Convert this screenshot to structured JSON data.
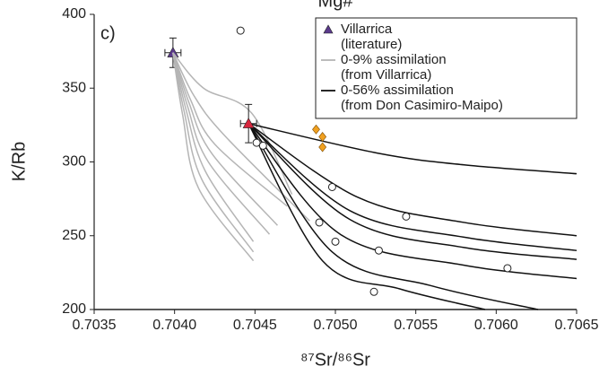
{
  "chart_data": {
    "type": "scatter",
    "title": "Mg#",
    "panel_label": "c)",
    "x_label": "⁸⁷Sr/⁸⁶Sr",
    "y_label": "K/Rb",
    "xlim": [
      0.7035,
      0.7065
    ],
    "ylim": [
      200,
      400
    ],
    "xticks": [
      0.7035,
      {
        "value": 0.704,
        "label": "0.7040"
      },
      0.7045,
      {
        "value": 0.705,
        "label": "0.7050"
      },
      0.7055,
      {
        "value": 0.706,
        "label": "0.7060"
      },
      0.7065
    ],
    "yticks": [
      200,
      250,
      300,
      350,
      400
    ],
    "legend": "upper right",
    "series": [
      {
        "name": "Villarrica (literature)",
        "kind": "triangle",
        "color": "#5b3a8c",
        "x": [
          0.70399
        ],
        "y": [
          374
        ],
        "xerr": [
          5e-05
        ],
        "yerr": [
          10
        ]
      },
      {
        "name": "0-9% assimilation (from Villarrica)",
        "kind": "curves",
        "color": "#b5b5b5",
        "curves": [
          {
            "x": [
              0.70399,
              0.70418,
              0.70448,
              0.70473
            ],
            "y": [
              374,
              350,
              333,
              278
            ]
          },
          {
            "x": [
              0.70399,
              0.70412,
              0.70431,
              0.70484
            ],
            "y": [
              374,
              345,
              318,
              260
            ]
          },
          {
            "x": [
              0.70399,
              0.7041,
              0.70425,
              0.7047
            ],
            "y": [
              374,
              342,
              312,
              270
            ]
          },
          {
            "x": [
              0.70399,
              0.70409,
              0.70423,
              0.70464
            ],
            "y": [
              374,
              340,
              306,
              257
            ]
          },
          {
            "x": [
              0.70399,
              0.70408,
              0.70421,
              0.70459
            ],
            "y": [
              374,
              338,
              300,
              251
            ]
          },
          {
            "x": [
              0.70399,
              0.70407,
              0.70419,
              0.70449
            ],
            "y": [
              374,
              336,
              294,
              246
            ]
          },
          {
            "x": [
              0.70399,
              0.70406,
              0.70417,
              0.70449
            ],
            "y": [
              374,
              334,
              288,
              239
            ]
          },
          {
            "x": [
              0.70399,
              0.70405,
              0.70415,
              0.70449
            ],
            "y": [
              374,
              332,
              282,
              233
            ]
          }
        ]
      },
      {
        "name": "0-56% assimilation (from Don Casimiro-Maipo)",
        "kind": "curves",
        "color": "#111111",
        "curves": [
          {
            "x": [
              0.70446,
              0.70526,
              0.7058,
              0.7065
            ],
            "y": [
              326,
              306,
              298,
              292
            ]
          },
          {
            "x": [
              0.70446,
              0.70514,
              0.7058,
              0.7065
            ],
            "y": [
              326,
              276,
              259,
              250
            ]
          },
          {
            "x": [
              0.70446,
              0.70509,
              0.7058,
              0.7065
            ],
            "y": [
              326,
              267,
              249,
              240
            ]
          },
          {
            "x": [
              0.70446,
              0.70509,
              0.7058,
              0.7065
            ],
            "y": [
              326,
              261,
              242,
              234
            ]
          },
          {
            "x": [
              0.70446,
              0.70503,
              0.7058,
              0.7065
            ],
            "y": [
              326,
              251,
              230,
              221
            ]
          },
          {
            "x": [
              0.70446,
              0.70498,
              0.7056,
              0.70626
            ],
            "y": [
              326,
              239,
              216,
              200
            ]
          },
          {
            "x": [
              0.70446,
              0.70492,
              0.7054,
              0.70593
            ],
            "y": [
              326,
              233,
              214,
              200
            ]
          }
        ]
      },
      {
        "kind": "triangle",
        "color": "#d7263d",
        "x": [
          0.70446
        ],
        "y": [
          326
        ],
        "xerr": [
          5e-05
        ],
        "yerr": [
          13
        ]
      },
      {
        "kind": "circle",
        "color": "#222222",
        "x": [
          0.70441,
          0.70451,
          0.70455,
          0.70498,
          0.7049,
          0.705,
          0.70544,
          0.70527,
          0.70607,
          0.70524
        ],
        "y": [
          389,
          313,
          311,
          283,
          259,
          246,
          263,
          240,
          228,
          212
        ]
      },
      {
        "kind": "diamond",
        "color": "#f0a020",
        "x": [
          0.70488,
          0.70492,
          0.70492
        ],
        "y": [
          322,
          317,
          310
        ]
      }
    ]
  }
}
